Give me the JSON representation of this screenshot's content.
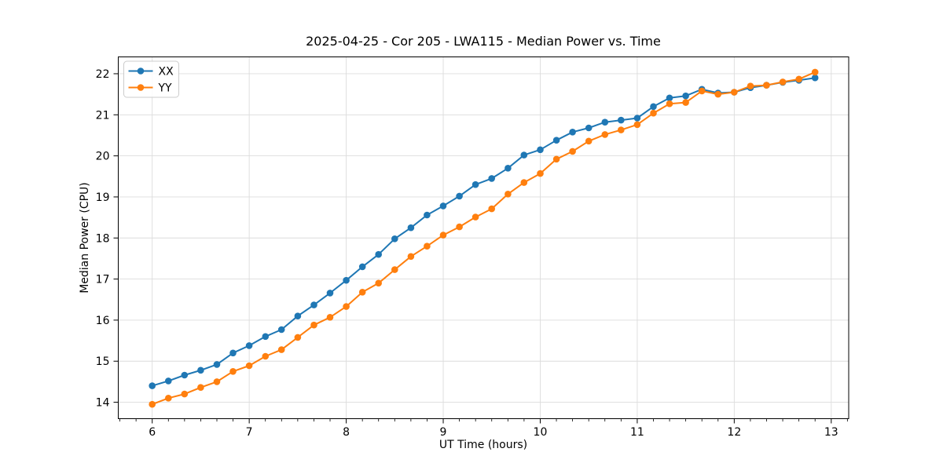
{
  "chart_data": {
    "type": "line",
    "title": "2025-04-25 - Cor 205 - LWA115 - Median Power vs. Time",
    "xlabel": "UT Time (hours)",
    "ylabel": "Median Power (CPU)",
    "x": [
      6.0,
      6.167,
      6.333,
      6.5,
      6.667,
      6.833,
      7.0,
      7.167,
      7.333,
      7.5,
      7.667,
      7.833,
      8.0,
      8.167,
      8.333,
      8.5,
      8.667,
      8.833,
      9.0,
      9.167,
      9.333,
      9.5,
      9.667,
      9.833,
      10.0,
      10.167,
      10.333,
      10.5,
      10.667,
      10.833,
      11.0,
      11.167,
      11.333,
      11.5,
      11.667,
      11.833,
      12.0,
      12.167,
      12.333,
      12.5,
      12.667,
      12.833
    ],
    "series": [
      {
        "name": "XX",
        "color": "#1f77b4",
        "values": [
          14.4,
          14.52,
          14.66,
          14.78,
          14.92,
          15.2,
          15.38,
          15.6,
          15.77,
          16.1,
          16.37,
          16.66,
          16.97,
          17.3,
          17.6,
          17.98,
          18.25,
          18.56,
          18.78,
          19.02,
          19.3,
          19.45,
          19.7,
          20.02,
          20.15,
          20.38,
          20.58,
          20.68,
          20.82,
          20.87,
          20.92,
          21.2,
          21.41,
          21.46,
          21.62,
          21.53,
          21.55,
          21.66,
          21.72,
          21.79,
          21.84,
          21.9
        ]
      },
      {
        "name": "YY",
        "color": "#ff7f0e",
        "values": [
          13.95,
          14.1,
          14.2,
          14.36,
          14.5,
          14.75,
          14.89,
          15.12,
          15.28,
          15.58,
          15.88,
          16.07,
          16.33,
          16.68,
          16.9,
          17.23,
          17.55,
          17.8,
          18.07,
          18.27,
          18.51,
          18.71,
          19.07,
          19.35,
          19.57,
          19.92,
          20.11,
          20.36,
          20.52,
          20.63,
          20.76,
          21.04,
          21.27,
          21.3,
          21.58,
          21.5,
          21.55,
          21.7,
          21.72,
          21.8,
          21.87,
          22.04
        ]
      }
    ],
    "xticks": [
      6,
      7,
      8,
      9,
      10,
      11,
      12,
      13
    ],
    "yticks": [
      14,
      15,
      16,
      17,
      18,
      19,
      20,
      21,
      22
    ],
    "xlim": [
      5.65,
      13.18
    ],
    "ylim": [
      13.6,
      22.41
    ],
    "x_minor_divisions": 6,
    "grid": true,
    "legend_position": "upper left",
    "marker": "o",
    "grid_color": "#dcdcdc",
    "spine_color": "#000000"
  }
}
